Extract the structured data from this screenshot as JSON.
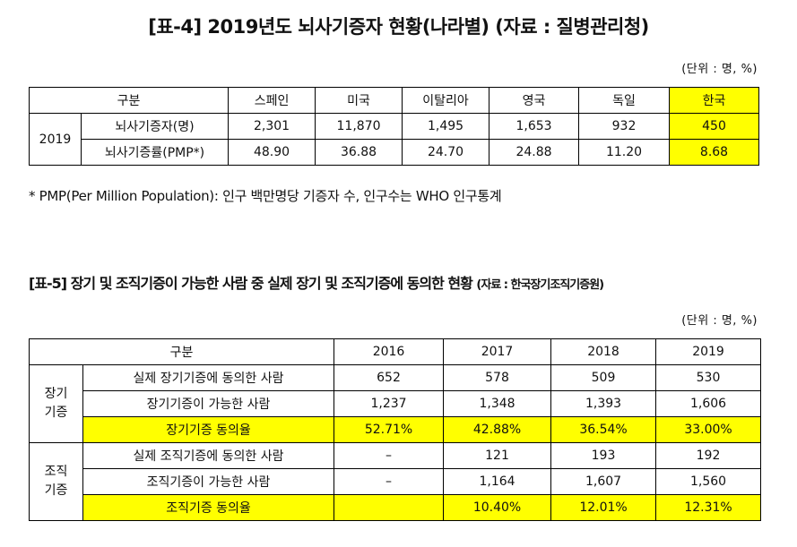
{
  "table4": {
    "title": "[표-4] 2019년도 뇌사기증자 현황(나라별) (자료 : 질병관리청)",
    "unit": "(단위 : 명, %)",
    "header": {
      "group": "구분",
      "countries": [
        "스페인",
        "미국",
        "이탈리아",
        "영국",
        "독일",
        "한국"
      ]
    },
    "year": "2019",
    "rows": [
      {
        "label": "뇌사기증자(명)",
        "values": [
          "2,301",
          "11,870",
          "1,495",
          "1,653",
          "932",
          "450"
        ]
      },
      {
        "label": "뇌사기증률(PMP*)",
        "values": [
          "48.90",
          "36.88",
          "24.70",
          "24.88",
          "11.20",
          "8.68"
        ]
      }
    ],
    "note": "* PMP(Per Million Population): 인구 백만명당 기증자 수, 인구수는 WHO 인구통계",
    "highlight_color": "#ffff00"
  },
  "table5": {
    "title": "[표-5] 장기 및 조직기증이 가능한 사람 중 실제 장기 및 조직기증에 동의한 현황",
    "source": "(자료 : 한국장기조직기증원)",
    "unit": "(단위 : 명, %)",
    "header": {
      "group": "구분",
      "years": [
        "2016",
        "2017",
        "2018",
        "2019"
      ]
    },
    "groups": [
      {
        "name": "장기\n기증",
        "rows": [
          {
            "label": "실제 장기기증에 동의한 사람",
            "values": [
              "652",
              "578",
              "509",
              "530"
            ]
          },
          {
            "label": "장기기증이 가능한 사람",
            "values": [
              "1,237",
              "1,348",
              "1,393",
              "1,606"
            ]
          },
          {
            "label": "장기기증 동의율",
            "values": [
              "52.71%",
              "42.88%",
              "36.54%",
              "33.00%"
            ]
          }
        ]
      },
      {
        "name": "조직\n기증",
        "rows": [
          {
            "label": "실제 조직기증에 동의한 사람",
            "values": [
              "–",
              "121",
              "193",
              "192"
            ]
          },
          {
            "label": "조직기증이 가능한 사람",
            "values": [
              "–",
              "1,164",
              "1,607",
              "1,560"
            ]
          },
          {
            "label": "조직기증 동의율",
            "values": [
              "",
              "10.40%",
              "12.01%",
              "12.31%"
            ]
          }
        ]
      }
    ]
  }
}
